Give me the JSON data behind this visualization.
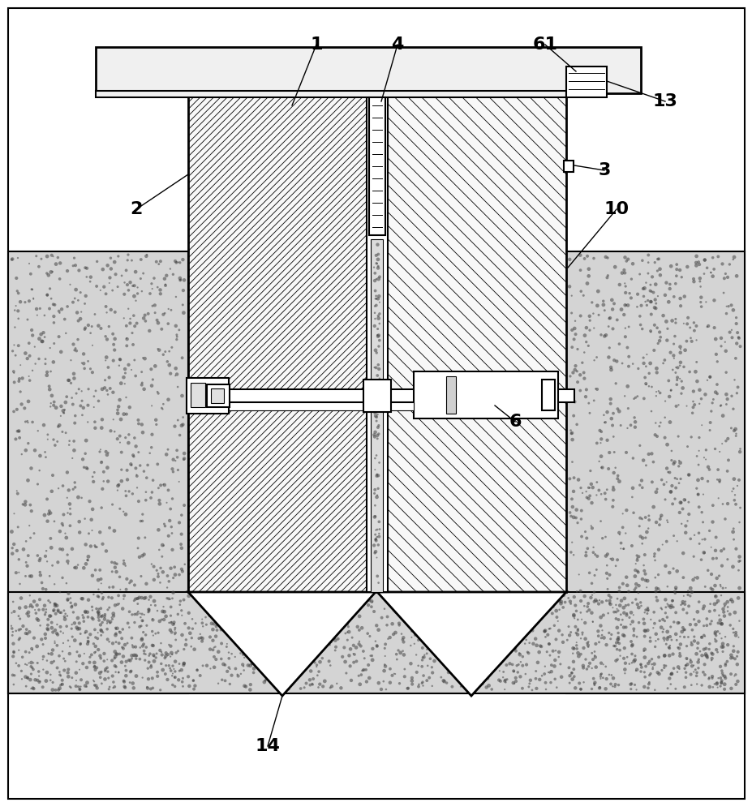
{
  "bg_color": "#ffffff",
  "label_fontsize": 16,
  "label_fontweight": "bold",
  "ann_color": "#000000",
  "ann_lw": 1.0,
  "lw_main": 1.5,
  "lw_thick": 2.0,
  "hatch_density": "///",
  "soil_fc": "#d8d8d8",
  "body_fc": "#ffffff",
  "top_bar_fc": "#f0f0f0"
}
